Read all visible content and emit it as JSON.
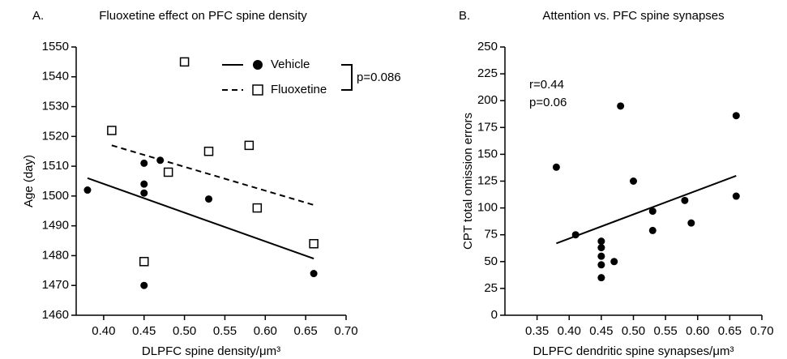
{
  "chart_data": [
    {
      "type": "scatter",
      "panel": "A.",
      "title": "Fluoxetine effect on PFC spine density",
      "xlabel": "DLPFC spine density/μm³",
      "ylabel": "Age (day)",
      "xlim": [
        0.366,
        0.7
      ],
      "ylim": [
        1460,
        1550
      ],
      "xticks": [
        {
          "value": 0.4,
          "label": "0.40"
        },
        {
          "value": 0.45,
          "label": "0.45"
        },
        {
          "value": 0.5,
          "label": "0.50"
        },
        {
          "value": 0.55,
          "label": "0.55"
        },
        {
          "value": 0.6,
          "label": "0.60"
        },
        {
          "value": 0.65,
          "label": "0.65"
        },
        {
          "value": 0.7,
          "label": "0.70"
        }
      ],
      "yticks": [
        1460,
        1470,
        1480,
        1490,
        1500,
        1510,
        1520,
        1530,
        1540,
        1550
      ],
      "series": [
        {
          "name": "Vehicle",
          "marker": "circle",
          "line": "solid",
          "color": "#000000",
          "x": [
            0.38,
            0.45,
            0.45,
            0.45,
            0.45,
            0.47,
            0.53,
            0.66
          ],
          "values": [
            1502,
            1511,
            1504,
            1501,
            1470,
            1512,
            1499,
            1474
          ],
          "fit_x": [
            0.38,
            0.66
          ],
          "fit_y": [
            1506,
            1479
          ]
        },
        {
          "name": "Fluoxetine",
          "marker": "square",
          "line": "dashed",
          "color": "#000000",
          "x": [
            0.41,
            0.45,
            0.48,
            0.5,
            0.53,
            0.58,
            0.59,
            0.66
          ],
          "values": [
            1522,
            1478,
            1508,
            1545,
            1515,
            1517,
            1496,
            1484
          ],
          "fit_x": [
            0.41,
            0.66
          ],
          "fit_y": [
            1517,
            1497
          ]
        }
      ],
      "annotation": "p=0.086"
    },
    {
      "type": "scatter",
      "panel": "B.",
      "title": "Attention vs. PFC spine synapses",
      "xlabel": "DLPFC dendritic spine synapses/μm³",
      "ylabel": "CPT total omission errors",
      "xlim": [
        0.3,
        0.7
      ],
      "ylim": [
        0,
        250
      ],
      "xticks": [
        0.35,
        {
          "value": 0.4,
          "label": "0.40"
        },
        0.45,
        {
          "value": 0.5,
          "label": "0.50"
        },
        0.55,
        {
          "value": 0.6,
          "label": "0.60"
        },
        0.65,
        {
          "value": 0.7,
          "label": "0.70"
        }
      ],
      "yticks": [
        0,
        25,
        50,
        75,
        100,
        125,
        150,
        175,
        200,
        225,
        250
      ],
      "series": [
        {
          "marker": "circle",
          "line": "solid",
          "color": "#000000",
          "x": [
            0.38,
            0.41,
            0.45,
            0.45,
            0.45,
            0.45,
            0.45,
            0.47,
            0.48,
            0.5,
            0.53,
            0.53,
            0.58,
            0.59,
            0.66,
            0.66
          ],
          "values": [
            138,
            75,
            69,
            63,
            55,
            47,
            35,
            50,
            195,
            125,
            97,
            79,
            107,
            86,
            186,
            111
          ],
          "fit_x": [
            0.38,
            0.66
          ],
          "fit_y": [
            67,
            130
          ]
        }
      ],
      "annotations": [
        "r=0.44",
        "p=0.06"
      ]
    }
  ]
}
